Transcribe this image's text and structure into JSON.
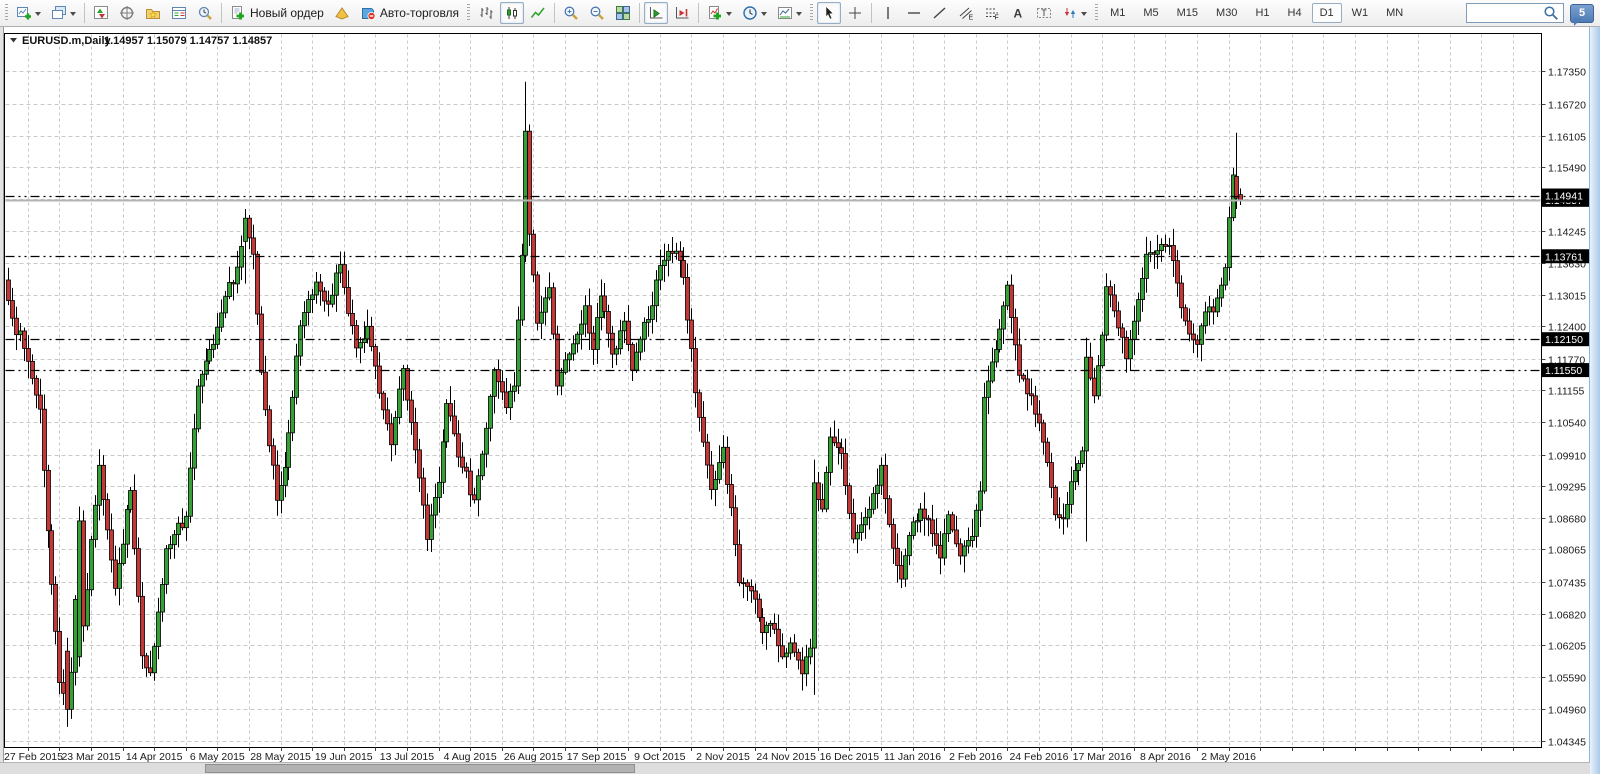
{
  "toolbar": {
    "new_order_label": "Новый ордер",
    "auto_trading_label": "Авто-торговля",
    "chat_badge": "5",
    "search_placeholder": "",
    "timeframes": [
      "M1",
      "M5",
      "M15",
      "M30",
      "H1",
      "H4",
      "D1",
      "W1",
      "MN"
    ],
    "active_timeframe": "D1",
    "groups": [
      {
        "items": [
          {
            "icon": "new-chart-icon",
            "dropdown": true
          },
          {
            "icon": "chart-profiles-icon",
            "dropdown": true
          }
        ]
      },
      {
        "items": [
          {
            "icon": "market-watch-icon"
          },
          {
            "icon": "data-window-icon"
          },
          {
            "icon": "navigator-icon"
          },
          {
            "icon": "terminal-icon"
          },
          {
            "icon": "strategy-tester-icon"
          }
        ]
      },
      {
        "items": [
          {
            "icon": "new-order-icon",
            "label_key": "new_order_label"
          },
          {
            "icon": "metaeditor-icon"
          },
          {
            "icon": "auto-trading-icon",
            "label_key": "auto_trading_label"
          }
        ]
      },
      {
        "items": [
          {
            "icon": "bar-chart-icon"
          },
          {
            "icon": "candlestick-chart-icon",
            "pressed": true
          },
          {
            "icon": "line-chart-icon"
          }
        ]
      },
      {
        "items": [
          {
            "icon": "zoom-in-icon"
          },
          {
            "icon": "zoom-out-icon"
          },
          {
            "icon": "tile-windows-icon"
          }
        ]
      },
      {
        "items": [
          {
            "icon": "auto-scroll-icon",
            "pressed": true
          },
          {
            "icon": "chart-shift-icon"
          }
        ]
      },
      {
        "items": [
          {
            "icon": "indicators-icon",
            "dropdown": true
          },
          {
            "icon": "periods-icon",
            "dropdown": true
          },
          {
            "icon": "templates-icon",
            "dropdown": true
          }
        ]
      },
      {
        "items": [
          {
            "icon": "cursor-icon",
            "pressed": true
          },
          {
            "icon": "crosshair-icon"
          }
        ]
      },
      {
        "items": [
          {
            "icon": "vertical-line-icon"
          },
          {
            "icon": "horizontal-line-icon"
          },
          {
            "icon": "trendline-icon"
          },
          {
            "icon": "equidistant-channel-icon"
          },
          {
            "icon": "fibonacci-icon"
          },
          {
            "icon": "text-icon"
          },
          {
            "icon": "text-label-icon"
          },
          {
            "icon": "arrows-icon",
            "dropdown": true
          }
        ]
      }
    ]
  },
  "chart": {
    "title_symbol": "EURUSD.m,Daily",
    "title_ohlc": "1.14957 1.15079 1.14757 1.14857"
  },
  "chart_data": {
    "type": "candlestick",
    "symbol": "EURUSD.m",
    "timeframe": "Daily",
    "last_bar": {
      "open": 1.14957,
      "high": 1.15079,
      "low": 1.14757,
      "close": 1.14857
    },
    "current_price": 1.14857,
    "level_lines": [
      1.14941,
      1.13761,
      1.1215,
      1.1155
    ],
    "y_ticks": [
      1.1735,
      1.1672,
      1.16105,
      1.1549,
      1.14245,
      1.1363,
      1.13015,
      1.124,
      1.1177,
      1.11155,
      1.1054,
      1.0991,
      1.09295,
      1.0868,
      1.08065,
      1.07435,
      1.0682,
      1.06205,
      1.0559,
      1.0496,
      1.04345
    ],
    "hidden_grid_levels": [
      1.14875
    ],
    "ylim": [
      1.04345,
      1.18088
    ],
    "x_labels": [
      "27 Feb 2015",
      "23 Mar 2015",
      "14 Apr 2015",
      "6 May 2015",
      "28 May 2015",
      "19 Jun 2015",
      "13 Jul 2015",
      "4 Aug 2015",
      "26 Aug 2015",
      "17 Sep 2015",
      "9 Oct 2015",
      "2 Nov 2015",
      "24 Nov 2015",
      "16 Dec 2015",
      "11 Jan 2016",
      "2 Feb 2016",
      "24 Feb 2016",
      "17 Mar 2016",
      "8 Apr 2016",
      "2 May 2016"
    ],
    "bar_count": 313,
    "bars_per_label": 16,
    "first_label_index": 5,
    "seed": 7,
    "anchors": [
      [
        0,
        1.129
      ],
      [
        4,
        1.1197
      ],
      [
        8,
        1.1079
      ],
      [
        10,
        1.0843
      ],
      [
        13,
        1.0548
      ],
      [
        15,
        1.0496
      ],
      [
        16,
        1.0568
      ],
      [
        18,
        1.0862
      ],
      [
        19,
        1.0658
      ],
      [
        23,
        1.097
      ],
      [
        27,
        1.0731
      ],
      [
        31,
        1.0921
      ],
      [
        34,
        1.06
      ],
      [
        36,
        1.0567
      ],
      [
        38,
        1.0685
      ],
      [
        40,
        1.0808
      ],
      [
        45,
        1.0871
      ],
      [
        48,
        1.1124
      ],
      [
        52,
        1.1205
      ],
      [
        54,
        1.1266
      ],
      [
        58,
        1.1355
      ],
      [
        60,
        1.145
      ],
      [
        62,
        1.138
      ],
      [
        64,
        1.1151
      ],
      [
        68,
        1.0902
      ],
      [
        70,
        1.0966
      ],
      [
        74,
        1.1241
      ],
      [
        78,
        1.1326
      ],
      [
        81,
        1.1283
      ],
      [
        84,
        1.136
      ],
      [
        88,
        1.1198
      ],
      [
        91,
        1.124
      ],
      [
        94,
        1.111
      ],
      [
        97,
        1.101
      ],
      [
        100,
        1.1158
      ],
      [
        103,
        1.1
      ],
      [
        106,
        1.0826
      ],
      [
        109,
        1.0937
      ],
      [
        111,
        1.109
      ],
      [
        114,
        1.0986
      ],
      [
        118,
        1.0903
      ],
      [
        121,
        1.1042
      ],
      [
        123,
        1.1156
      ],
      [
        126,
        1.1082
      ],
      [
        128,
        1.1124
      ],
      [
        130,
        1.1378
      ],
      [
        131,
        1.1619
      ],
      [
        132,
        1.1419
      ],
      [
        134,
        1.1246
      ],
      [
        137,
        1.1315
      ],
      [
        139,
        1.1124
      ],
      [
        141,
        1.1175
      ],
      [
        143,
        1.1206
      ],
      [
        146,
        1.128
      ],
      [
        148,
        1.1195
      ],
      [
        150,
        1.1299
      ],
      [
        153,
        1.1186
      ],
      [
        156,
        1.125
      ],
      [
        158,
        1.1155
      ],
      [
        160,
        1.1215
      ],
      [
        163,
        1.128
      ],
      [
        165,
        1.1358
      ],
      [
        169,
        1.1386
      ],
      [
        171,
        1.1335
      ],
      [
        174,
        1.1111
      ],
      [
        176,
        1.1015
      ],
      [
        178,
        1.0923
      ],
      [
        181,
        1.1005
      ],
      [
        185,
        1.0742
      ],
      [
        188,
        1.0726
      ],
      [
        191,
        1.0645
      ],
      [
        193,
        1.0663
      ],
      [
        196,
        1.0598
      ],
      [
        198,
        1.0625
      ],
      [
        201,
        1.0565
      ],
      [
        203,
        1.0615
      ],
      [
        204,
        1.0936
      ],
      [
        206,
        1.0885
      ],
      [
        208,
        1.1025
      ],
      [
        211,
        1.0993
      ],
      [
        214,
        1.0827
      ],
      [
        217,
        1.0869
      ],
      [
        219,
        1.0915
      ],
      [
        221,
        1.097
      ],
      [
        223,
        1.0855
      ],
      [
        226,
        1.0749
      ],
      [
        229,
        1.086
      ],
      [
        231,
        1.0885
      ],
      [
        233,
        1.0864
      ],
      [
        236,
        1.079
      ],
      [
        238,
        1.0874
      ],
      [
        241,
        1.0794
      ],
      [
        244,
        1.0832
      ],
      [
        246,
        1.092
      ],
      [
        247,
        1.1102
      ],
      [
        250,
        1.1195
      ],
      [
        253,
        1.132
      ],
      [
        256,
        1.1145
      ],
      [
        259,
        1.1105
      ],
      [
        262,
        1.1015
      ],
      [
        265,
        1.0874
      ],
      [
        267,
        1.0866
      ],
      [
        270,
        1.096
      ],
      [
        272,
        1.0998
      ],
      [
        273,
        1.118
      ],
      [
        275,
        1.1105
      ],
      [
        277,
        1.1223
      ],
      [
        278,
        1.1317
      ],
      [
        280,
        1.127
      ],
      [
        283,
        1.1177
      ],
      [
        285,
        1.125
      ],
      [
        288,
        1.138
      ],
      [
        291,
        1.1387
      ],
      [
        294,
        1.1397
      ],
      [
        297,
        1.1276
      ],
      [
        299,
        1.1225
      ],
      [
        301,
        1.1205
      ],
      [
        303,
        1.1268
      ],
      [
        305,
        1.1268
      ],
      [
        307,
        1.132
      ],
      [
        308,
        1.1354
      ],
      [
        309,
        1.1451
      ],
      [
        310,
        1.1534
      ],
      [
        311,
        1.1489
      ],
      [
        312,
        1.14857
      ]
    ],
    "overrides": {
      "15": [
        1.0609,
        1.0635,
        1.0462,
        1.0496
      ],
      "18": [
        1.0598,
        1.089,
        1.0579,
        1.0862
      ],
      "60": [
        1.1405,
        1.1468,
        1.1323,
        1.145
      ],
      "131": [
        1.1378,
        1.1715,
        1.1365,
        1.1619
      ],
      "132": [
        1.1619,
        1.1632,
        1.1396,
        1.1419
      ],
      "204": [
        1.0615,
        1.0981,
        1.0524,
        1.0936
      ],
      "273": [
        1.0998,
        1.1218,
        1.0822,
        1.118
      ],
      "311": [
        1.1531,
        1.1616,
        1.1468,
        1.1489
      ],
      "312": [
        1.14957,
        1.15079,
        1.14757,
        1.14857
      ]
    },
    "colors": {
      "bull": "#35a035",
      "bear": "#c43737",
      "wick": "#000000",
      "grid": "#c9c9c9",
      "level_line": "#000000",
      "current_price_line": "#b4b4b4",
      "tag_bg": "#000000",
      "tag_text": "#ffffff",
      "frame": "#000000",
      "axis_text": "#1a1a1a"
    }
  }
}
